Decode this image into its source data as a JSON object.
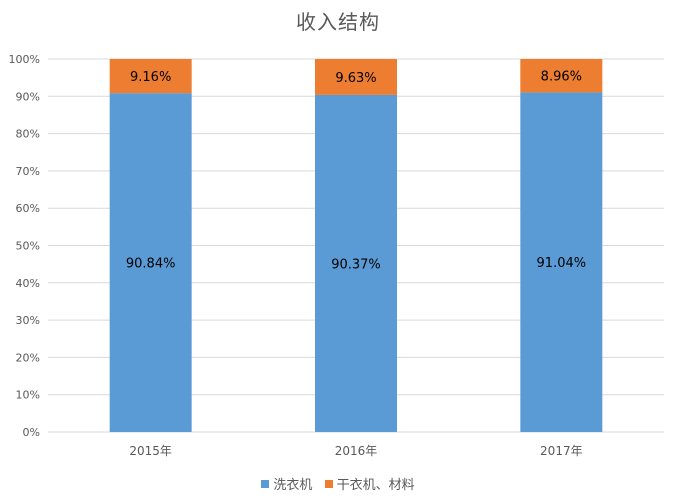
{
  "colors": {
    "washing_machine": "#5b9bd5",
    "dryer_materials": "#ed7d31",
    "grid": "#d9d9d9",
    "axis_text": "#595959"
  },
  "chart_data": {
    "type": "bar",
    "stacked": true,
    "title": "收入结构",
    "categories": [
      "2015年",
      "2016年",
      "2017年"
    ],
    "series": [
      {
        "name": "洗衣机",
        "values": [
          90.84,
          90.37,
          91.04
        ],
        "labels": [
          "90.84%",
          "90.37%",
          "91.04%"
        ],
        "color": "#5b9bd5"
      },
      {
        "name": "干衣机、材料",
        "values": [
          9.16,
          9.63,
          8.96
        ],
        "labels": [
          "9.16%",
          "9.63%",
          "8.96%"
        ],
        "color": "#ed7d31"
      }
    ],
    "ylim": [
      0,
      100
    ],
    "yticks": [
      0,
      10,
      20,
      30,
      40,
      50,
      60,
      70,
      80,
      90,
      100
    ],
    "ytick_labels": [
      "0%",
      "10%",
      "20%",
      "30%",
      "40%",
      "50%",
      "60%",
      "70%",
      "80%",
      "90%",
      "100%"
    ],
    "grid": true,
    "legend_position": "bottom"
  }
}
